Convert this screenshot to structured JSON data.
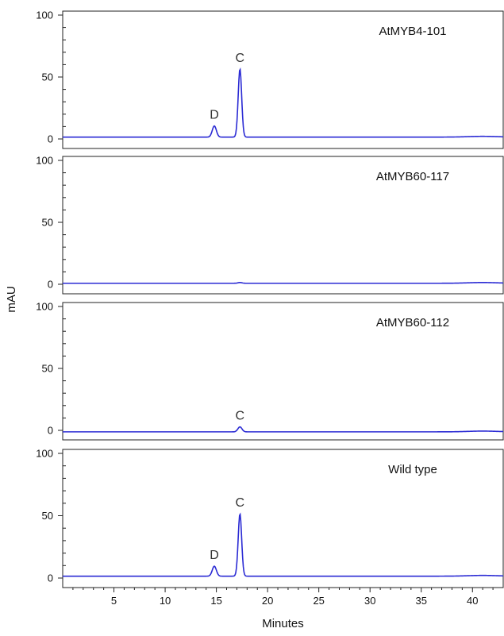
{
  "chart_data": {
    "type": "line",
    "xlabel": "Minutes",
    "ylabel": "mAU",
    "xlim": [
      0,
      43
    ],
    "x_ticks": [
      5,
      10,
      15,
      20,
      25,
      30,
      35,
      40
    ],
    "x_tick_labels": [
      "5",
      "10",
      "15",
      "20",
      "25",
      "30",
      "35",
      "40"
    ],
    "ylim": [
      0,
      100
    ],
    "y_ticks": [
      0,
      50,
      100
    ],
    "y_tick_labels": [
      "0",
      "50",
      "100"
    ],
    "line_color": "#2b2bd4",
    "grid": false,
    "panels": [
      {
        "label": "AtMYB4-101",
        "baseline": 1.5,
        "peaks": [
          {
            "x": 14.8,
            "height": 9,
            "label": "D"
          },
          {
            "x": 17.3,
            "height": 55,
            "label": "C"
          }
        ]
      },
      {
        "label": "AtMYB60-117",
        "baseline": 0.8,
        "peaks": [
          {
            "x": 17.3,
            "height": 0.6,
            "label": ""
          }
        ]
      },
      {
        "label": "AtMYB60-112",
        "baseline": -1.2,
        "peaks": [
          {
            "x": 17.3,
            "height": 4,
            "label": "C"
          }
        ]
      },
      {
        "label": "Wild type",
        "baseline": 1.5,
        "peaks": [
          {
            "x": 14.8,
            "height": 8,
            "label": "D"
          },
          {
            "x": 17.3,
            "height": 50,
            "label": "C"
          }
        ]
      }
    ]
  }
}
